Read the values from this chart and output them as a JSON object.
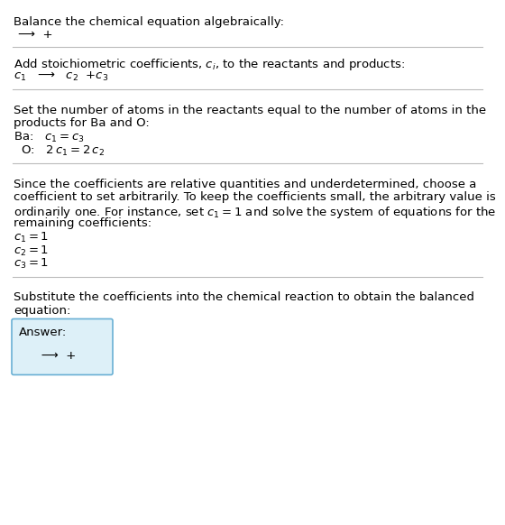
{
  "background_color": "#ffffff",
  "text_color": "#000000",
  "section1_line1": "Balance the chemical equation algebraically:",
  "section1_line2": "⟶  +",
  "section2_header": "Add stoichiometric coefficients, $c_i$, to the reactants and products:",
  "section2_equation": "$c_1$   ⟶   $c_2$  +$c_3$",
  "section3_header_1": "Set the number of atoms in the reactants equal to the number of atoms in the",
  "section3_header_2": "products for Ba and O:",
  "section3_ba": "Ba:   $c_1 = c_3$",
  "section3_o": "  O:   $2\\,c_1 = 2\\,c_2$",
  "section4_header_1": "Since the coefficients are relative quantities and underdetermined, choose a",
  "section4_header_2": "coefficient to set arbitrarily. To keep the coefficients small, the arbitrary value is",
  "section4_header_3": "ordinarily one. For instance, set $c_1 = 1$ and solve the system of equations for the",
  "section4_header_4": "remaining coefficients:",
  "section4_c1": "$c_1 = 1$",
  "section4_c2": "$c_2 = 1$",
  "section4_c3": "$c_3 = 1$",
  "section5_header_1": "Substitute the coefficients into the chemical reaction to obtain the balanced",
  "section5_header_2": "equation:",
  "answer_label": "Answer:",
  "answer_equation": "   ⟶  +",
  "answer_box_color": "#ddf0f8",
  "answer_box_border": "#6ab0d4",
  "divider_color": "#bbbbbb"
}
